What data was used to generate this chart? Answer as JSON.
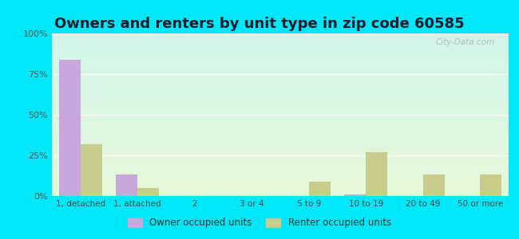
{
  "title": "Owners and renters by unit type in zip code 60585",
  "categories": [
    "1, detached",
    "1, attached",
    "2",
    "3 or 4",
    "5 to 9",
    "10 to 19",
    "20 to 49",
    "50 or more"
  ],
  "owner_values": [
    84,
    13,
    0,
    0,
    0,
    1,
    0,
    0
  ],
  "renter_values": [
    32,
    5,
    0,
    0,
    9,
    27,
    13,
    13
  ],
  "owner_color": "#c8a8dc",
  "renter_color": "#c8cc8c",
  "background_outer": "#00e8f8",
  "ylim": [
    0,
    100
  ],
  "yticks": [
    0,
    25,
    50,
    75,
    100
  ],
  "ytick_labels": [
    "0%",
    "25%",
    "50%",
    "75%",
    "100%"
  ],
  "title_fontsize": 13,
  "legend_labels": [
    "Owner occupied units",
    "Renter occupied units"
  ],
  "watermark": "City-Data.com",
  "bg_top_color": "#cceeff",
  "bg_bottom_color": "#e8f8e0"
}
